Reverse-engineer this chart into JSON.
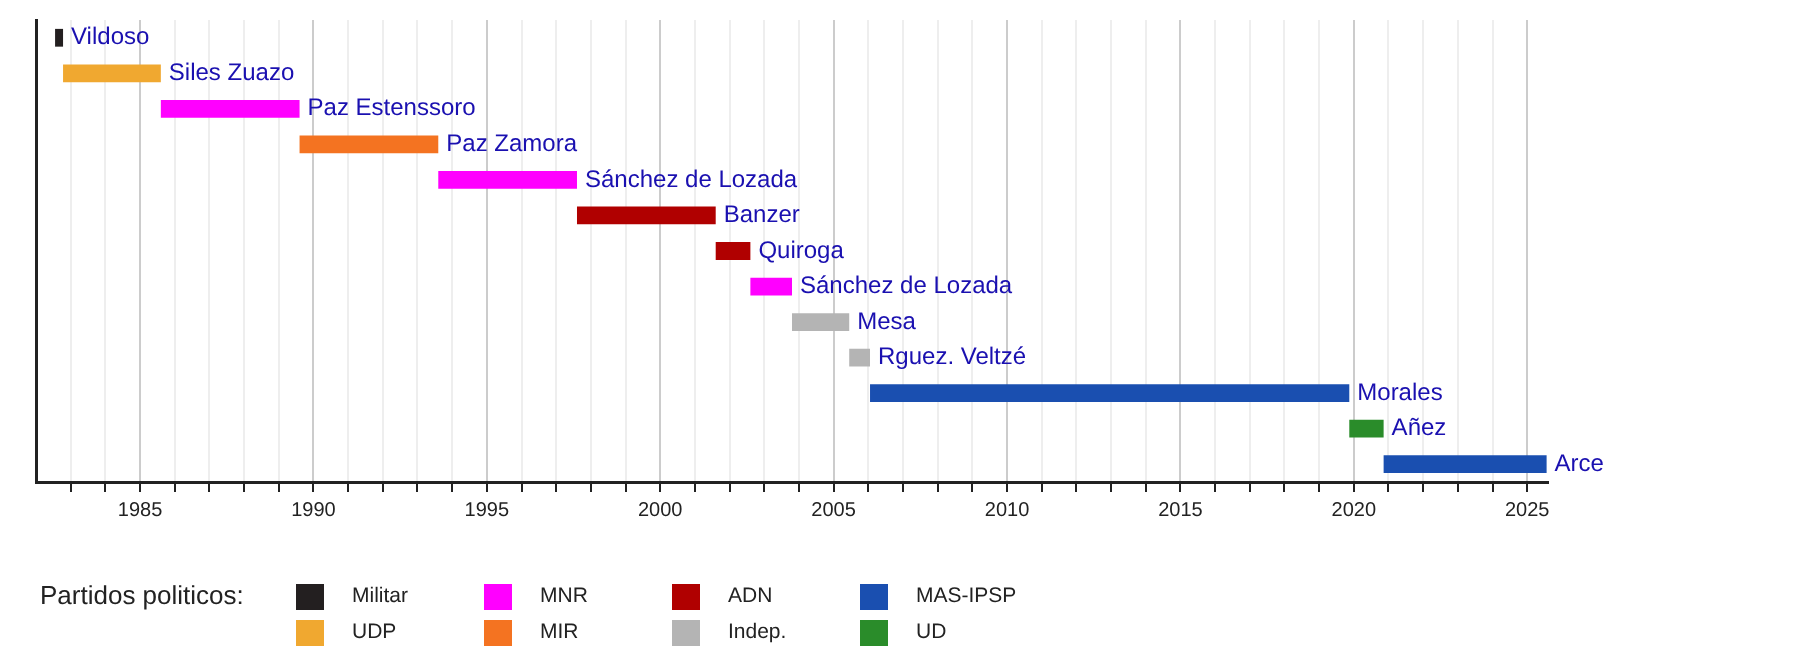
{
  "chart_data": {
    "type": "bar",
    "orientation": "horizontal",
    "legend": "bottom",
    "legend_title": "Partidos politicos:",
    "tick_labels": "x",
    "grid": "x",
    "categories": [
      "Vildoso",
      "Siles Zuazo",
      "Paz Estenssoro",
      "Paz Zamora",
      "Sánchez de Lozada",
      "Banzer",
      "Quiroga",
      "Sánchez de Lozada",
      "Mesa",
      "Rguez. Veltzé",
      "Morales",
      "Añez",
      "Arce"
    ],
    "xlim": [
      1982,
      2025.6
    ],
    "xticks": [
      {
        "value": 1983,
        "label": null
      },
      {
        "value": 1984,
        "label": null
      },
      1985,
      {
        "value": 1986,
        "label": null
      },
      {
        "value": 1987,
        "label": null
      },
      {
        "value": 1988,
        "label": null
      },
      {
        "value": 1989,
        "label": null
      },
      1990,
      {
        "value": 1991,
        "label": null
      },
      {
        "value": 1992,
        "label": null
      },
      {
        "value": 1993,
        "label": null
      },
      {
        "value": 1994,
        "label": null
      },
      1995,
      {
        "value": 1996,
        "label": null
      },
      {
        "value": 1997,
        "label": null
      },
      {
        "value": 1998,
        "label": null
      },
      {
        "value": 1999,
        "label": null
      },
      2000,
      {
        "value": 2001,
        "label": null
      },
      {
        "value": 2002,
        "label": null
      },
      {
        "value": 2003,
        "label": null
      },
      {
        "value": 2004,
        "label": null
      },
      2005,
      {
        "value": 2006,
        "label": null
      },
      {
        "value": 2007,
        "label": null
      },
      {
        "value": 2008,
        "label": null
      },
      {
        "value": 2009,
        "label": null
      },
      2010,
      {
        "value": 2011,
        "label": null
      },
      {
        "value": 2012,
        "label": null
      },
      {
        "value": 2013,
        "label": null
      },
      {
        "value": 2014,
        "label": null
      },
      2015,
      {
        "value": 2016,
        "label": null
      },
      {
        "value": 2017,
        "label": null
      },
      {
        "value": 2018,
        "label": null
      },
      {
        "value": 2019,
        "label": null
      },
      2020,
      {
        "value": 2021,
        "label": null
      },
      {
        "value": 2022,
        "label": null
      },
      {
        "value": 2023,
        "label": null
      },
      {
        "value": 2024,
        "label": null
      },
      2025
    ],
    "series": [
      {
        "name": "Militar",
        "color": "#231f20",
        "base": [
          1982.55,
          null,
          null,
          null,
          null,
          null,
          null,
          null,
          null,
          null,
          null,
          null,
          null
        ],
        "values": [
          0.23,
          null,
          null,
          null,
          null,
          null,
          null,
          null,
          null,
          null,
          null,
          null,
          null
        ]
      },
      {
        "name": "UDP",
        "color": "#f0a830",
        "base": [
          null,
          1982.78,
          null,
          null,
          null,
          null,
          null,
          null,
          null,
          null,
          null,
          null,
          null
        ],
        "values": [
          null,
          2.82,
          null,
          null,
          null,
          null,
          null,
          null,
          null,
          null,
          null,
          null,
          null
        ]
      },
      {
        "name": "MNR",
        "color": "#ff00ff",
        "base": [
          null,
          null,
          1985.6,
          null,
          1993.6,
          null,
          null,
          2002.6,
          null,
          null,
          null,
          null,
          null
        ],
        "values": [
          null,
          null,
          4.0,
          null,
          4.0,
          null,
          null,
          1.2,
          null,
          null,
          null,
          null,
          null
        ]
      },
      {
        "name": "MIR",
        "color": "#f47321",
        "base": [
          null,
          null,
          null,
          1989.6,
          null,
          null,
          null,
          null,
          null,
          null,
          null,
          null,
          null
        ],
        "values": [
          null,
          null,
          null,
          4.0,
          null,
          null,
          null,
          null,
          null,
          null,
          null,
          null,
          null
        ]
      },
      {
        "name": "ADN",
        "color": "#b00000",
        "base": [
          null,
          null,
          null,
          null,
          null,
          1997.6,
          2001.6,
          null,
          null,
          null,
          null,
          null,
          null
        ],
        "values": [
          null,
          null,
          null,
          null,
          null,
          4.0,
          1.0,
          null,
          null,
          null,
          null,
          null,
          null
        ]
      },
      {
        "name": "Indep.",
        "color": "#b4b4b4",
        "base": [
          null,
          null,
          null,
          null,
          null,
          null,
          null,
          null,
          2003.8,
          2005.45,
          null,
          null,
          null
        ],
        "values": [
          null,
          null,
          null,
          null,
          null,
          null,
          null,
          null,
          1.65,
          0.6,
          null,
          null,
          null
        ]
      },
      {
        "name": "MAS-IPSP",
        "color": "#1a4fb0",
        "base": [
          null,
          null,
          null,
          null,
          null,
          null,
          null,
          null,
          null,
          null,
          2006.05,
          null,
          2020.86
        ],
        "values": [
          null,
          null,
          null,
          null,
          null,
          null,
          null,
          null,
          null,
          null,
          13.82,
          null,
          4.7
        ]
      },
      {
        "name": "UD",
        "color": "#2a8c2a",
        "base": [
          null,
          null,
          null,
          null,
          null,
          null,
          null,
          null,
          null,
          null,
          null,
          2019.87,
          null
        ],
        "values": [
          null,
          null,
          null,
          null,
          null,
          null,
          null,
          null,
          null,
          null,
          null,
          0.99,
          null
        ]
      }
    ]
  }
}
